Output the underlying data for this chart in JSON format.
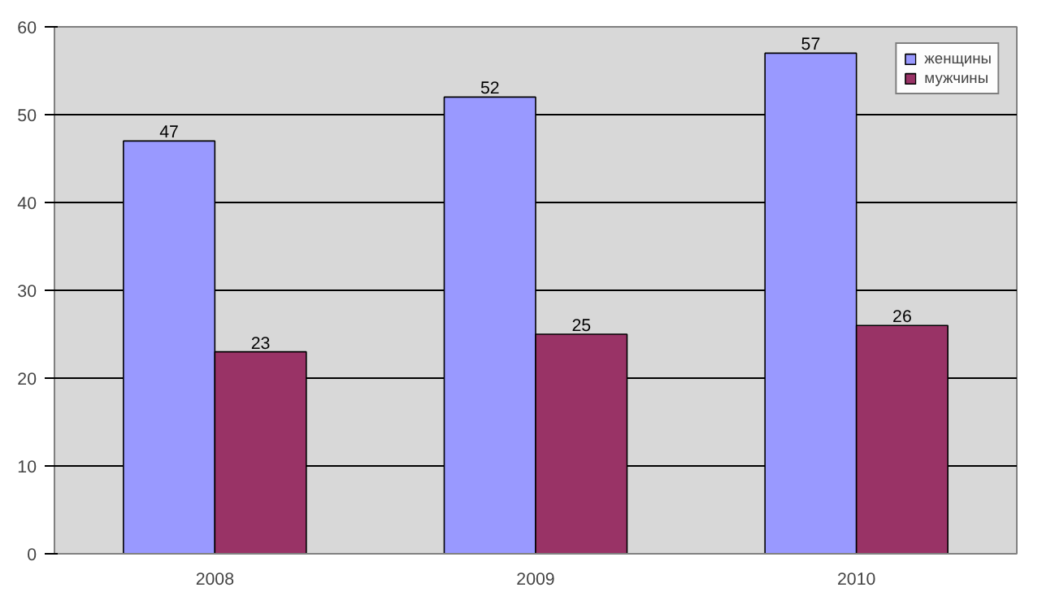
{
  "chart_data": {
    "type": "bar",
    "categories": [
      "2008",
      "2009",
      "2010"
    ],
    "series": [
      {
        "name": "женщины",
        "color": "#9999ff",
        "values": [
          47,
          52,
          57
        ]
      },
      {
        "name": "мужчины",
        "color": "#993366",
        "values": [
          23,
          25,
          26
        ]
      }
    ],
    "ylim": [
      0,
      60
    ],
    "yticks": [
      0,
      10,
      20,
      30,
      40,
      50,
      60
    ],
    "grid": "y",
    "legend": "top right",
    "data_labels": true
  }
}
